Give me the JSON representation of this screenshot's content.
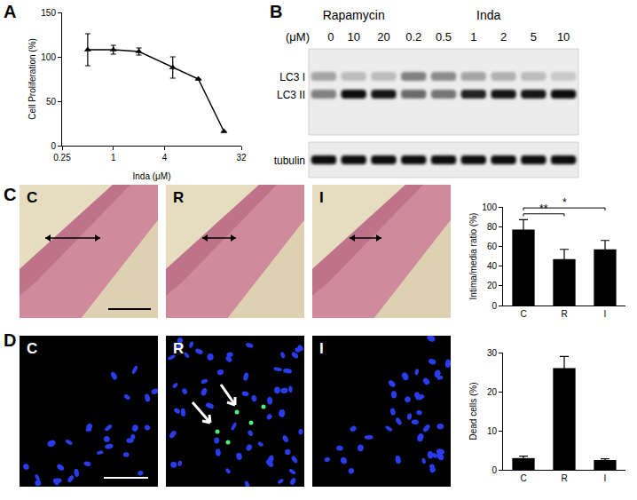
{
  "panel_labels": [
    "A",
    "B",
    "C",
    "D"
  ],
  "chart_data": [
    {
      "type": "line",
      "x": [
        0.5,
        1,
        2,
        5,
        10,
        20
      ],
      "values": [
        108,
        108,
        106,
        88,
        75,
        16
      ],
      "errors": [
        18,
        5,
        4,
        12,
        0,
        0
      ],
      "log": "x",
      "marker": "triangle",
      "color": "#000000",
      "x_label": "Inda (μM)",
      "y_label": "Cell Proliferation (%)",
      "xlim": [
        0.25,
        32
      ],
      "xticks": [
        0.25,
        1,
        4,
        32
      ],
      "ylim": [
        0,
        150
      ],
      "yticks": [
        0,
        50,
        100,
        150
      ],
      "grid": false
    },
    {
      "type": "bar",
      "categories": [
        "C",
        "R",
        "I"
      ],
      "values": [
        77,
        47,
        57
      ],
      "errors": [
        10,
        10,
        9
      ],
      "color": "#000000",
      "y_label": "Intima/media ratio (%)",
      "ylim": [
        0,
        100
      ],
      "yticks": [
        0,
        20,
        40,
        60,
        80,
        100
      ],
      "grid": false,
      "significance": [
        {
          "from": "C",
          "to": "R",
          "text": "**"
        },
        {
          "from": "C",
          "to": "I",
          "text": "*"
        }
      ]
    },
    {
      "type": "bar",
      "categories": [
        "C",
        "R",
        "I"
      ],
      "values": [
        3,
        26,
        2.5
      ],
      "errors": [
        0.5,
        3,
        0.3
      ],
      "color": "#000000",
      "y_label": "Dead cells (%)",
      "ylim": [
        0,
        30
      ],
      "yticks": [
        0,
        10,
        20,
        30
      ],
      "grid": false
    }
  ],
  "blot": {
    "unit": "(μM)",
    "groups": [
      {
        "name": "Rapamycin",
        "doses": [
          0,
          10,
          20
        ]
      },
      {
        "name": "Inda",
        "doses": [
          0.2,
          0.5,
          1,
          2,
          5,
          10
        ]
      }
    ],
    "rows": [
      {
        "label": "LC3 I",
        "intensity": [
          0.3,
          0.2,
          0.2,
          0.45,
          0.4,
          0.3,
          0.25,
          0.2,
          0.15
        ]
      },
      {
        "label": "LC3 II",
        "intensity": [
          0.45,
          0.95,
          0.9,
          0.55,
          0.5,
          0.85,
          0.9,
          0.9,
          0.95
        ]
      },
      {
        "label": "tubulin",
        "intensity": [
          0.95,
          0.95,
          0.95,
          0.95,
          0.95,
          0.95,
          0.95,
          0.95,
          0.95
        ]
      }
    ]
  },
  "image_labels": {
    "C": [
      "C",
      "R",
      "I"
    ],
    "D": [
      "C",
      "R",
      "I"
    ]
  }
}
